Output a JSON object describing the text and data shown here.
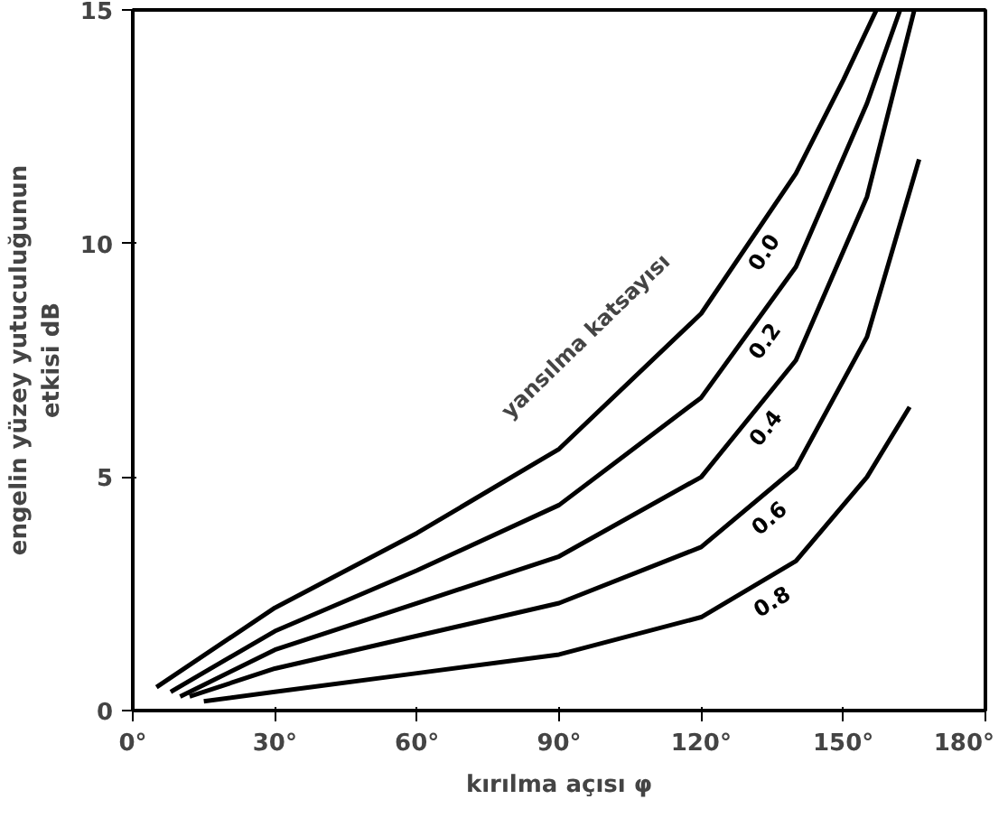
{
  "chart_data": {
    "type": "line",
    "xlabel": "kırılma açısı φ",
    "ylabel": "engelin yüzey yutuculuğunun\netkisi dB",
    "xlim": [
      0,
      180
    ],
    "ylim": [
      0,
      15
    ],
    "xticks": [
      {
        "value": 0,
        "label": "0°"
      },
      {
        "value": 30,
        "label": "30°"
      },
      {
        "value": 60,
        "label": "60°"
      },
      {
        "value": 90,
        "label": "90°"
      },
      {
        "value": 120,
        "label": "120°"
      },
      {
        "value": 150,
        "label": "150°"
      },
      {
        "value": 180,
        "label": "180°"
      }
    ],
    "yticks": [
      0,
      5,
      10,
      15
    ],
    "grid": false,
    "legend": false,
    "marker": "none",
    "line_style": "solid",
    "annotations": [
      "yansılma katsayısı"
    ],
    "series": [
      {
        "name": "0.0",
        "color": "#000000",
        "x": [
          5,
          30,
          60,
          90,
          120,
          140,
          150,
          157
        ],
        "values": [
          0.5,
          2.2,
          3.8,
          5.6,
          8.5,
          11.5,
          13.5,
          15
        ]
      },
      {
        "name": "0.2",
        "color": "#000000",
        "x": [
          8,
          30,
          60,
          90,
          120,
          140,
          155,
          162
        ],
        "values": [
          0.4,
          1.7,
          3.0,
          4.4,
          6.7,
          9.5,
          13,
          15
        ]
      },
      {
        "name": "0.4",
        "color": "#000000",
        "x": [
          10,
          30,
          60,
          90,
          120,
          140,
          155,
          165
        ],
        "values": [
          0.3,
          1.3,
          2.3,
          3.3,
          5.0,
          7.5,
          11,
          15
        ]
      },
      {
        "name": "0.6",
        "color": "#000000",
        "x": [
          12,
          30,
          60,
          90,
          120,
          140,
          155,
          166
        ],
        "values": [
          0.3,
          0.9,
          1.6,
          2.3,
          3.5,
          5.2,
          8,
          11.8
        ]
      },
      {
        "name": "0.8",
        "color": "#000000",
        "x": [
          15,
          30,
          60,
          90,
          120,
          140,
          155,
          164
        ],
        "values": [
          0.2,
          0.4,
          0.8,
          1.2,
          2.0,
          3.2,
          5,
          6.5
        ]
      }
    ]
  }
}
